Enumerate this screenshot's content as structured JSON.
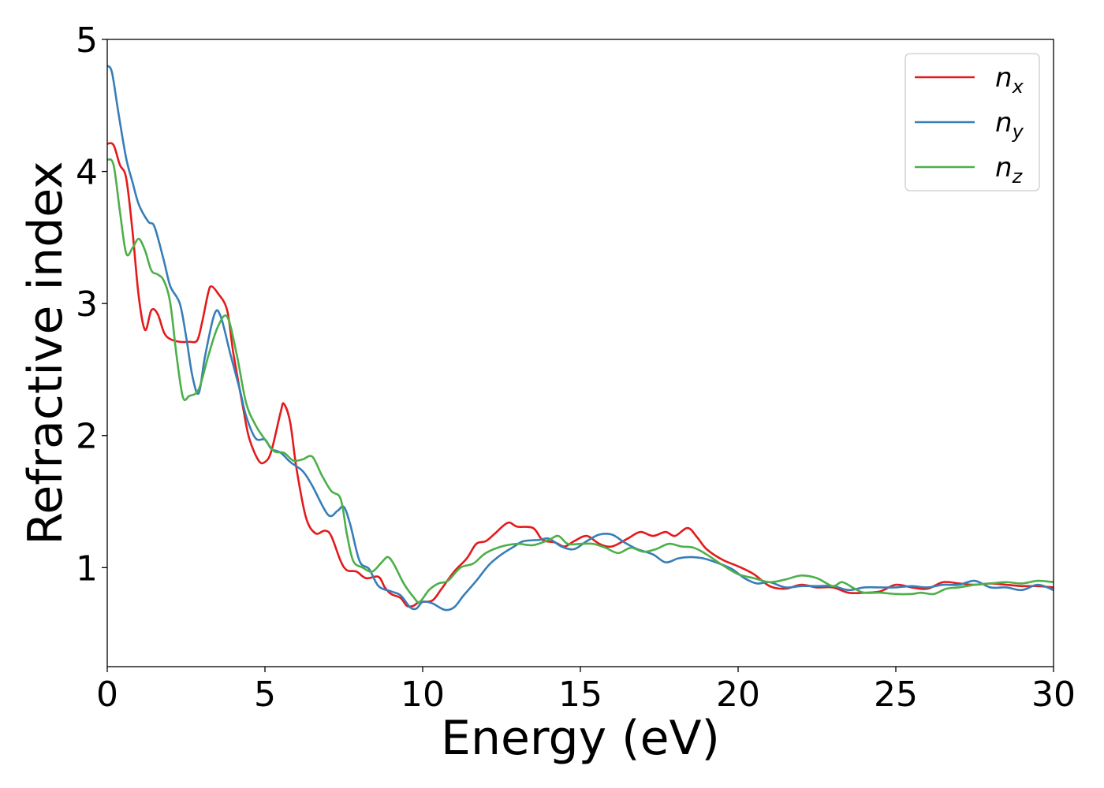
{
  "chart_data": {
    "type": "line",
    "title": "",
    "xlabel": "Energy (eV)",
    "ylabel": "Refractive index",
    "xlim": [
      0,
      30
    ],
    "ylim": [
      0.25,
      5.0
    ],
    "xticks": [
      0,
      5,
      10,
      15,
      20,
      25,
      30
    ],
    "xtick_labels": [
      "0",
      "5",
      "10",
      "15",
      "20",
      "25",
      "30"
    ],
    "yticks": [
      1,
      2,
      3,
      4,
      5
    ],
    "ytick_labels": [
      "1",
      "2",
      "3",
      "4",
      "5"
    ],
    "grid": false,
    "legend": {
      "position": "top-right",
      "entries": [
        {
          "series": "n_x",
          "base": "n",
          "sub": "x"
        },
        {
          "series": "n_y",
          "base": "n",
          "sub": "y"
        },
        {
          "series": "n_z",
          "base": "n",
          "sub": "z"
        }
      ]
    },
    "series": [
      {
        "name": "n_x",
        "color": "#e41a1c",
        "points": [
          [
            0,
            4.21
          ],
          [
            0.2,
            4.2
          ],
          [
            0.4,
            4.05
          ],
          [
            0.6,
            3.95
          ],
          [
            0.8,
            3.55
          ],
          [
            1.0,
            3.05
          ],
          [
            1.2,
            2.8
          ],
          [
            1.4,
            2.95
          ],
          [
            1.6,
            2.92
          ],
          [
            1.8,
            2.78
          ],
          [
            2.0,
            2.73
          ],
          [
            2.3,
            2.71
          ],
          [
            2.6,
            2.71
          ],
          [
            2.85,
            2.72
          ],
          [
            3.0,
            2.85
          ],
          [
            3.2,
            3.08
          ],
          [
            3.3,
            3.13
          ],
          [
            3.5,
            3.08
          ],
          [
            3.8,
            2.95
          ],
          [
            4.0,
            2.62
          ],
          [
            4.3,
            2.22
          ],
          [
            4.5,
            1.98
          ],
          [
            4.8,
            1.81
          ],
          [
            5.0,
            1.8
          ],
          [
            5.2,
            1.88
          ],
          [
            5.5,
            2.18
          ],
          [
            5.6,
            2.24
          ],
          [
            5.8,
            2.1
          ],
          [
            6.0,
            1.75
          ],
          [
            6.3,
            1.38
          ],
          [
            6.6,
            1.26
          ],
          [
            6.9,
            1.28
          ],
          [
            7.1,
            1.24
          ],
          [
            7.4,
            1.05
          ],
          [
            7.6,
            0.98
          ],
          [
            7.9,
            0.97
          ],
          [
            8.2,
            0.92
          ],
          [
            8.6,
            0.93
          ],
          [
            8.8,
            0.85
          ],
          [
            9.0,
            0.8
          ],
          [
            9.3,
            0.77
          ],
          [
            9.5,
            0.71
          ],
          [
            9.7,
            0.71
          ],
          [
            9.9,
            0.74
          ],
          [
            10.3,
            0.75
          ],
          [
            10.6,
            0.84
          ],
          [
            11.0,
            0.97
          ],
          [
            11.4,
            1.07
          ],
          [
            11.7,
            1.18
          ],
          [
            12.0,
            1.2
          ],
          [
            12.3,
            1.26
          ],
          [
            12.7,
            1.34
          ],
          [
            13.0,
            1.31
          ],
          [
            13.5,
            1.3
          ],
          [
            13.8,
            1.21
          ],
          [
            14.2,
            1.19
          ],
          [
            14.5,
            1.16
          ],
          [
            14.8,
            1.2
          ],
          [
            15.2,
            1.24
          ],
          [
            15.6,
            1.18
          ],
          [
            16.0,
            1.16
          ],
          [
            16.5,
            1.22
          ],
          [
            16.9,
            1.27
          ],
          [
            17.3,
            1.24
          ],
          [
            17.7,
            1.27
          ],
          [
            18.0,
            1.24
          ],
          [
            18.4,
            1.3
          ],
          [
            18.7,
            1.23
          ],
          [
            19.0,
            1.14
          ],
          [
            19.5,
            1.06
          ],
          [
            20.0,
            1.01
          ],
          [
            20.5,
            0.95
          ],
          [
            21.0,
            0.86
          ],
          [
            21.5,
            0.84
          ],
          [
            22.0,
            0.87
          ],
          [
            22.5,
            0.85
          ],
          [
            23.0,
            0.85
          ],
          [
            23.5,
            0.81
          ],
          [
            24.0,
            0.81
          ],
          [
            24.5,
            0.82
          ],
          [
            25.0,
            0.87
          ],
          [
            25.5,
            0.85
          ],
          [
            26.0,
            0.84
          ],
          [
            26.5,
            0.89
          ],
          [
            27.0,
            0.88
          ],
          [
            27.5,
            0.87
          ],
          [
            28.0,
            0.88
          ],
          [
            28.5,
            0.87
          ],
          [
            29.0,
            0.86
          ],
          [
            29.5,
            0.86
          ],
          [
            30.0,
            0.85
          ]
        ]
      },
      {
        "name": "n_y",
        "color": "#377eb8",
        "points": [
          [
            0,
            4.8
          ],
          [
            0.15,
            4.75
          ],
          [
            0.35,
            4.45
          ],
          [
            0.6,
            4.1
          ],
          [
            0.8,
            3.92
          ],
          [
            1.0,
            3.75
          ],
          [
            1.3,
            3.62
          ],
          [
            1.5,
            3.58
          ],
          [
            1.8,
            3.32
          ],
          [
            2.0,
            3.13
          ],
          [
            2.3,
            3.0
          ],
          [
            2.5,
            2.75
          ],
          [
            2.7,
            2.45
          ],
          [
            2.9,
            2.32
          ],
          [
            3.1,
            2.6
          ],
          [
            3.4,
            2.92
          ],
          [
            3.6,
            2.9
          ],
          [
            3.9,
            2.62
          ],
          [
            4.2,
            2.35
          ],
          [
            4.4,
            2.15
          ],
          [
            4.7,
            1.98
          ],
          [
            5.0,
            1.97
          ],
          [
            5.2,
            1.9
          ],
          [
            5.5,
            1.87
          ],
          [
            5.8,
            1.8
          ],
          [
            6.2,
            1.73
          ],
          [
            6.5,
            1.62
          ],
          [
            7.0,
            1.4
          ],
          [
            7.3,
            1.43
          ],
          [
            7.5,
            1.46
          ],
          [
            7.7,
            1.33
          ],
          [
            8.0,
            1.05
          ],
          [
            8.3,
            0.99
          ],
          [
            8.6,
            0.86
          ],
          [
            9.0,
            0.82
          ],
          [
            9.3,
            0.79
          ],
          [
            9.6,
            0.7
          ],
          [
            9.8,
            0.69
          ],
          [
            10.0,
            0.74
          ],
          [
            10.3,
            0.73
          ],
          [
            10.7,
            0.68
          ],
          [
            11.0,
            0.7
          ],
          [
            11.3,
            0.79
          ],
          [
            11.7,
            0.9
          ],
          [
            12.1,
            1.02
          ],
          [
            12.5,
            1.1
          ],
          [
            12.9,
            1.16
          ],
          [
            13.2,
            1.2
          ],
          [
            13.7,
            1.21
          ],
          [
            14.0,
            1.22
          ],
          [
            14.4,
            1.16
          ],
          [
            14.8,
            1.14
          ],
          [
            15.2,
            1.2
          ],
          [
            15.6,
            1.25
          ],
          [
            16.0,
            1.25
          ],
          [
            16.4,
            1.19
          ],
          [
            16.8,
            1.14
          ],
          [
            17.3,
            1.1
          ],
          [
            17.7,
            1.04
          ],
          [
            18.1,
            1.07
          ],
          [
            18.5,
            1.08
          ],
          [
            18.9,
            1.07
          ],
          [
            19.3,
            1.04
          ],
          [
            19.8,
            0.99
          ],
          [
            20.2,
            0.92
          ],
          [
            20.6,
            0.88
          ],
          [
            21.0,
            0.89
          ],
          [
            21.5,
            0.85
          ],
          [
            22.0,
            0.86
          ],
          [
            22.5,
            0.86
          ],
          [
            23.0,
            0.86
          ],
          [
            23.5,
            0.83
          ],
          [
            24.0,
            0.85
          ],
          [
            24.5,
            0.85
          ],
          [
            25.0,
            0.85
          ],
          [
            25.5,
            0.86
          ],
          [
            26.0,
            0.85
          ],
          [
            26.5,
            0.87
          ],
          [
            27.0,
            0.87
          ],
          [
            27.5,
            0.9
          ],
          [
            28.0,
            0.85
          ],
          [
            28.5,
            0.85
          ],
          [
            29.0,
            0.83
          ],
          [
            29.5,
            0.87
          ],
          [
            30.0,
            0.83
          ]
        ]
      },
      {
        "name": "n_z",
        "color": "#4daf4a",
        "points": [
          [
            0,
            4.09
          ],
          [
            0.2,
            4.05
          ],
          [
            0.4,
            3.7
          ],
          [
            0.6,
            3.38
          ],
          [
            0.8,
            3.42
          ],
          [
            1.0,
            3.49
          ],
          [
            1.2,
            3.4
          ],
          [
            1.4,
            3.25
          ],
          [
            1.6,
            3.22
          ],
          [
            1.8,
            3.17
          ],
          [
            2.0,
            3.0
          ],
          [
            2.2,
            2.6
          ],
          [
            2.4,
            2.29
          ],
          [
            2.6,
            2.3
          ],
          [
            2.9,
            2.35
          ],
          [
            3.2,
            2.6
          ],
          [
            3.5,
            2.82
          ],
          [
            3.8,
            2.9
          ],
          [
            4.1,
            2.62
          ],
          [
            4.4,
            2.25
          ],
          [
            4.7,
            2.08
          ],
          [
            5.0,
            1.97
          ],
          [
            5.3,
            1.88
          ],
          [
            5.6,
            1.87
          ],
          [
            5.9,
            1.81
          ],
          [
            6.2,
            1.82
          ],
          [
            6.5,
            1.84
          ],
          [
            6.8,
            1.7
          ],
          [
            7.1,
            1.58
          ],
          [
            7.4,
            1.52
          ],
          [
            7.6,
            1.25
          ],
          [
            7.8,
            1.05
          ],
          [
            8.1,
            1.0
          ],
          [
            8.4,
            0.97
          ],
          [
            8.7,
            1.04
          ],
          [
            8.9,
            1.08
          ],
          [
            9.1,
            1.02
          ],
          [
            9.4,
            0.88
          ],
          [
            9.7,
            0.78
          ],
          [
            9.9,
            0.74
          ],
          [
            10.2,
            0.83
          ],
          [
            10.5,
            0.88
          ],
          [
            10.8,
            0.9
          ],
          [
            11.2,
            1.0
          ],
          [
            11.6,
            1.03
          ],
          [
            12.0,
            1.11
          ],
          [
            12.5,
            1.16
          ],
          [
            13.0,
            1.18
          ],
          [
            13.5,
            1.17
          ],
          [
            14.0,
            1.21
          ],
          [
            14.3,
            1.24
          ],
          [
            14.6,
            1.18
          ],
          [
            15.0,
            1.18
          ],
          [
            15.4,
            1.18
          ],
          [
            15.8,
            1.15
          ],
          [
            16.2,
            1.11
          ],
          [
            16.6,
            1.15
          ],
          [
            17.0,
            1.12
          ],
          [
            17.4,
            1.14
          ],
          [
            17.8,
            1.18
          ],
          [
            18.2,
            1.16
          ],
          [
            18.6,
            1.15
          ],
          [
            19.0,
            1.1
          ],
          [
            19.5,
            1.02
          ],
          [
            20.0,
            0.95
          ],
          [
            20.5,
            0.92
          ],
          [
            21.0,
            0.89
          ],
          [
            21.5,
            0.91
          ],
          [
            22.0,
            0.94
          ],
          [
            22.5,
            0.92
          ],
          [
            23.0,
            0.86
          ],
          [
            23.3,
            0.89
          ],
          [
            23.7,
            0.84
          ],
          [
            24.0,
            0.81
          ],
          [
            24.5,
            0.81
          ],
          [
            25.0,
            0.8
          ],
          [
            25.5,
            0.8
          ],
          [
            25.8,
            0.81
          ],
          [
            26.2,
            0.8
          ],
          [
            26.6,
            0.84
          ],
          [
            27.0,
            0.85
          ],
          [
            27.5,
            0.87
          ],
          [
            28.0,
            0.88
          ],
          [
            28.5,
            0.89
          ],
          [
            29.0,
            0.88
          ],
          [
            29.5,
            0.9
          ],
          [
            30.0,
            0.89
          ]
        ]
      }
    ]
  }
}
